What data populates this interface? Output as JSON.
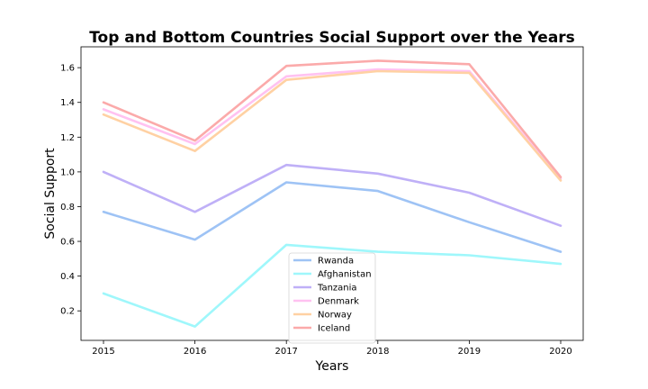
{
  "chart_data": {
    "type": "line",
    "title": "Top and Bottom Countries Social Support over the Years",
    "xlabel": "Years",
    "ylabel": "Social Support",
    "x": [
      2015,
      2016,
      2017,
      2018,
      2019,
      2020
    ],
    "xticks": [
      "2015",
      "2016",
      "2017",
      "2018",
      "2019",
      "2020"
    ],
    "yticks": [
      "0.2",
      "0.4",
      "0.6",
      "0.8",
      "1.0",
      "1.2",
      "1.4",
      "1.6"
    ],
    "ylim": [
      0.03,
      1.72
    ],
    "grid": false,
    "legend_position": "bottom-center",
    "series": [
      {
        "name": "Rwanda",
        "color": "#9ec3f5",
        "values": [
          0.77,
          0.61,
          0.94,
          0.89,
          0.71,
          0.54
        ]
      },
      {
        "name": "Afghanistan",
        "color": "#9ff7fb",
        "values": [
          0.3,
          0.11,
          0.58,
          0.54,
          0.52,
          0.47
        ]
      },
      {
        "name": "Tanzania",
        "color": "#bfb0f7",
        "values": [
          1.0,
          0.77,
          1.04,
          0.99,
          0.88,
          0.69
        ]
      },
      {
        "name": "Denmark",
        "color": "#ffc2f1",
        "values": [
          1.36,
          1.16,
          1.55,
          1.59,
          1.58,
          0.96
        ]
      },
      {
        "name": "Norway",
        "color": "#ffd1a3",
        "values": [
          1.33,
          1.12,
          1.53,
          1.58,
          1.57,
          0.95
        ]
      },
      {
        "name": "Iceland",
        "color": "#fbaaaa",
        "values": [
          1.4,
          1.18,
          1.61,
          1.64,
          1.62,
          0.97
        ]
      }
    ]
  }
}
